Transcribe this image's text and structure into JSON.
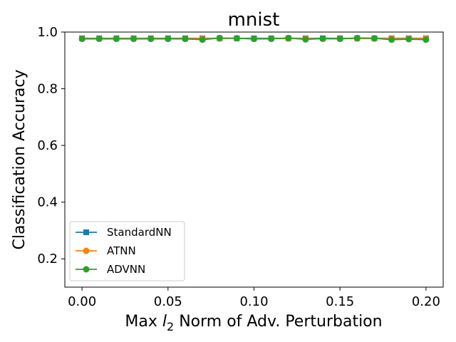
{
  "chart_data": {
    "type": "line",
    "title": "mnist",
    "xlabel_prefix": "Max ",
    "xlabel_symbol": "l",
    "xlabel_subscript": "2",
    "xlabel_suffix": " Norm of Adv. Perturbation",
    "ylabel": "Classification Accuracy",
    "xlim": [
      -0.01,
      0.21
    ],
    "ylim": [
      0.1,
      1.0
    ],
    "xticks": [
      0.0,
      0.05,
      0.1,
      0.15,
      0.2
    ],
    "xtick_labels": [
      "0.00",
      "0.05",
      "0.10",
      "0.15",
      "0.20"
    ],
    "yticks": [
      0.2,
      0.4,
      0.6,
      0.8,
      1.0
    ],
    "ytick_labels": [
      "0.2",
      "0.4",
      "0.6",
      "0.8",
      "1.0"
    ],
    "grid": false,
    "legend_position": "lower-left",
    "x": [
      0.0,
      0.01,
      0.02,
      0.03,
      0.04,
      0.05,
      0.06,
      0.07,
      0.08,
      0.09,
      0.1,
      0.11,
      0.12,
      0.13,
      0.14,
      0.15,
      0.16,
      0.17,
      0.18,
      0.19,
      0.2
    ],
    "series": [
      {
        "name": "StandardNN",
        "color": "#1f77b4",
        "marker": "square",
        "values": [
          0.978,
          0.978,
          0.978,
          0.978,
          0.978,
          0.978,
          0.978,
          0.978,
          0.978,
          0.978,
          0.978,
          0.978,
          0.978,
          0.978,
          0.978,
          0.978,
          0.978,
          0.978,
          0.978,
          0.978,
          0.978
        ]
      },
      {
        "name": "ATNN",
        "color": "#ff7f0e",
        "marker": "circle",
        "values": [
          0.977,
          0.977,
          0.977,
          0.977,
          0.977,
          0.977,
          0.977,
          0.977,
          0.977,
          0.978,
          0.976,
          0.977,
          0.977,
          0.977,
          0.976,
          0.977,
          0.977,
          0.977,
          0.977,
          0.977,
          0.977
        ]
      },
      {
        "name": "ADVNN",
        "color": "#2ca02c",
        "marker": "circle",
        "values": [
          0.976,
          0.976,
          0.976,
          0.976,
          0.976,
          0.976,
          0.976,
          0.973,
          0.979,
          0.978,
          0.976,
          0.976,
          0.979,
          0.974,
          0.977,
          0.976,
          0.979,
          0.978,
          0.973,
          0.975,
          0.973
        ]
      }
    ]
  }
}
